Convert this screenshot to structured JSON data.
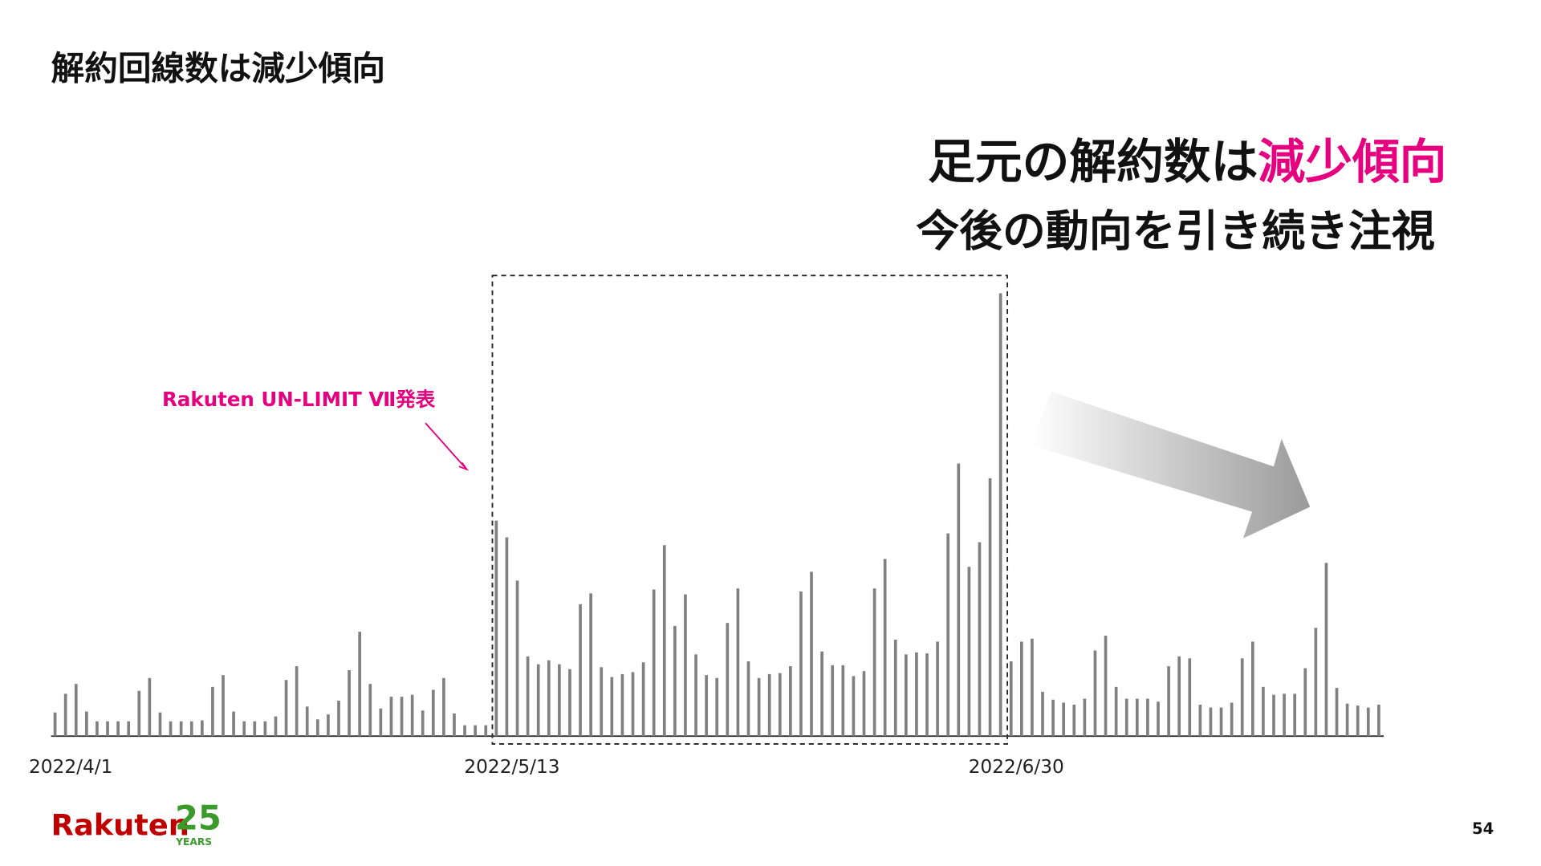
{
  "chart_data": {
    "type": "bar",
    "title": "解約回線数は減少傾向",
    "headline": [
      "足元の解約数は",
      "減少傾向"
    ],
    "subheadline": "今後の動向を引き続き注視",
    "annotation": "Rakuten UN-LIMIT Ⅶ発表",
    "categories": [
      "2022/4/1",
      null,
      null,
      null,
      null,
      null,
      null,
      null,
      null,
      null,
      null,
      null,
      null,
      null,
      null,
      null,
      null,
      null,
      null,
      null,
      null,
      null,
      null,
      null,
      null,
      null,
      null,
      null,
      null,
      null,
      null,
      null,
      null,
      null,
      null,
      null,
      null,
      null,
      null,
      null,
      null,
      null,
      "2022/5/13",
      null,
      null,
      null,
      null,
      null,
      null,
      null,
      null,
      null,
      null,
      null,
      null,
      null,
      null,
      null,
      null,
      null,
      null,
      null,
      null,
      null,
      null,
      null,
      null,
      null,
      null,
      null,
      null,
      null,
      null,
      null,
      null,
      null,
      null,
      null,
      null,
      null,
      null,
      null,
      null,
      null,
      null,
      null,
      null,
      null,
      null,
      null,
      "2022/6/30",
      null,
      null,
      null,
      null,
      null,
      null,
      null,
      null,
      null,
      null,
      null,
      null,
      null,
      null,
      null,
      null,
      null,
      null,
      null,
      null,
      null,
      null,
      null,
      null,
      null,
      null,
      null,
      null,
      null,
      null,
      null,
      null,
      null,
      null,
      null,
      null
    ],
    "values": [
      24,
      43,
      53,
      25,
      15,
      15,
      15,
      15,
      46,
      59,
      24,
      15,
      15,
      15,
      16,
      50,
      62,
      25,
      15,
      15,
      15,
      20,
      57,
      71,
      30,
      17,
      22,
      36,
      67,
      106,
      53,
      28,
      40,
      40,
      42,
      26,
      47,
      59,
      23,
      11,
      11,
      11,
      219,
      202,
      158,
      81,
      73,
      77,
      73,
      68,
      134,
      145,
      70,
      60,
      63,
      65,
      75,
      149,
      194,
      112,
      144,
      83,
      62,
      59,
      115,
      150,
      76,
      59,
      63,
      64,
      71,
      147,
      167,
      86,
      72,
      72,
      61,
      66,
      150,
      180,
      98,
      83,
      85,
      84,
      96,
      206,
      277,
      172,
      197,
      262,
      450,
      76,
      96,
      99,
      45,
      37,
      34,
      32,
      38,
      87,
      102,
      50,
      38,
      38,
      38,
      35,
      71,
      81,
      79,
      32,
      29,
      29,
      34,
      79,
      96,
      50,
      42,
      43,
      43,
      69,
      110,
      176,
      49,
      33,
      31,
      29,
      32
    ],
    "color": "#808080",
    "ylim": [
      0,
      460
    ],
    "logo": {
      "brand": "Rakuten",
      "number": "25",
      "years": "YEARS"
    },
    "page_number": "54"
  }
}
